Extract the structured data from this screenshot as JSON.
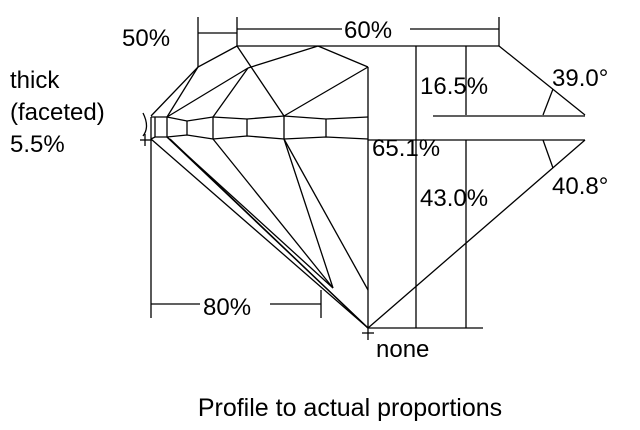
{
  "labels": {
    "girdle_line1": "thick",
    "girdle_line2": "(faceted)",
    "girdle_value": "5.5%",
    "star_length": "50%",
    "table": "60%",
    "crown_height": "16.5%",
    "crown_angle": "39.0°",
    "total_depth": "65.1%",
    "pavilion_depth": "43.0%",
    "pavilion_angle": "40.8°",
    "lower_half": "80%",
    "culet": "none"
  },
  "caption": "Profile to actual proportions",
  "colors": {
    "line": "#000000",
    "background": "#ffffff"
  }
}
